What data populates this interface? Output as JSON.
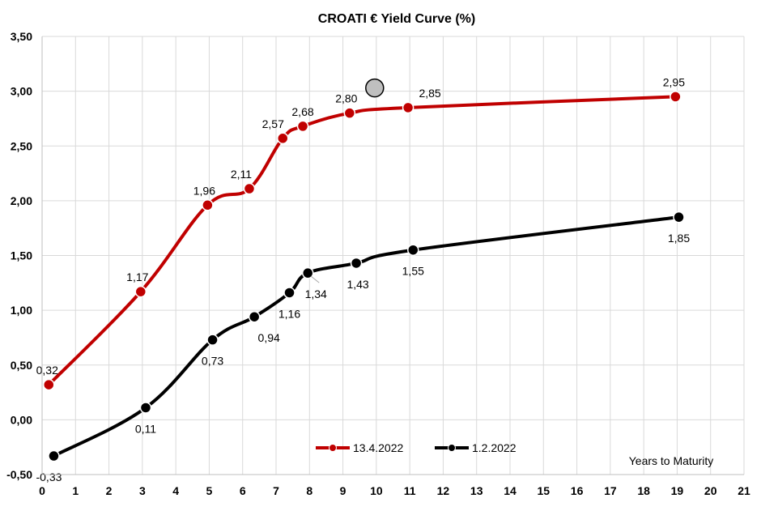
{
  "chart_data": {
    "type": "line",
    "title": "CROATI € Yield Curve (%)",
    "xlabel": "Years to Maturity",
    "ylabel": "",
    "xlim": [
      0,
      21
    ],
    "ylim": [
      -0.5,
      3.5
    ],
    "x_ticks": [
      "0",
      "1",
      "2",
      "3",
      "4",
      "5",
      "6",
      "7",
      "8",
      "9",
      "10",
      "11",
      "12",
      "13",
      "14",
      "15",
      "16",
      "17",
      "18",
      "19",
      "20",
      "21"
    ],
    "y_ticks": [
      "-0,50",
      "0,00",
      "0,50",
      "1,00",
      "1,50",
      "2,00",
      "2,50",
      "3,00",
      "3,50"
    ],
    "y_tick_values": [
      -0.5,
      0,
      0.5,
      1,
      1.5,
      2,
      2.5,
      3,
      3.5
    ],
    "grid": true,
    "legend_position": "bottom-center",
    "series": [
      {
        "name": "13.4.2022",
        "color": "#C00000",
        "points": [
          {
            "x": 0.2,
            "y": 0.32,
            "label": "0,32"
          },
          {
            "x": 2.95,
            "y": 1.17,
            "label": "1,17"
          },
          {
            "x": 4.95,
            "y": 1.96,
            "label": "1,96"
          },
          {
            "x": 6.2,
            "y": 2.11,
            "label": "2,11"
          },
          {
            "x": 7.2,
            "y": 2.57,
            "label": "2,57"
          },
          {
            "x": 7.8,
            "y": 2.68,
            "label": "2,68"
          },
          {
            "x": 9.2,
            "y": 2.8,
            "label": "2,80"
          },
          {
            "x": 10.95,
            "y": 2.85,
            "label": "2,85"
          },
          {
            "x": 18.95,
            "y": 2.95,
            "label": "2,95"
          }
        ]
      },
      {
        "name": "1.2.2022",
        "color": "#000000",
        "points": [
          {
            "x": 0.35,
            "y": -0.33,
            "label": "-0,33"
          },
          {
            "x": 3.1,
            "y": 0.11,
            "label": "0,11"
          },
          {
            "x": 5.1,
            "y": 0.73,
            "label": "0,73"
          },
          {
            "x": 6.35,
            "y": 0.94,
            "label": "0,94"
          },
          {
            "x": 7.4,
            "y": 1.16,
            "label": "1,16"
          },
          {
            "x": 7.95,
            "y": 1.34,
            "label": "1,34"
          },
          {
            "x": 9.4,
            "y": 1.43,
            "label": "1,43"
          },
          {
            "x": 11.1,
            "y": 1.55,
            "label": "1,55"
          },
          {
            "x": 19.05,
            "y": 1.85,
            "label": "1,85"
          }
        ]
      }
    ],
    "highlight_marker": {
      "x": 9.95,
      "y": 3.03,
      "color": "#BFBFBF"
    }
  }
}
